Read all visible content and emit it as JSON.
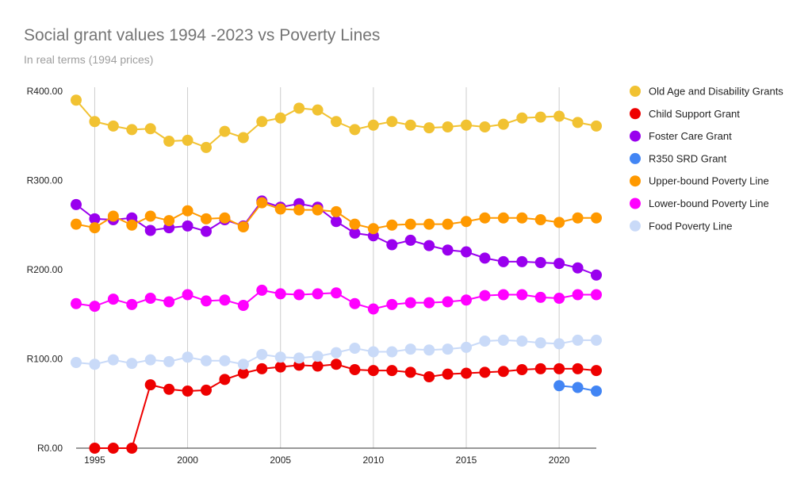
{
  "chart_data": {
    "type": "line",
    "title": "Social grant values 1994 -2023 vs Poverty Lines",
    "subtitle": "In real terms (1994 prices)",
    "xlabel": "",
    "ylabel": "",
    "x": [
      1994,
      1995,
      1996,
      1997,
      1998,
      1999,
      2000,
      2001,
      2002,
      2003,
      2004,
      2005,
      2006,
      2007,
      2008,
      2009,
      2010,
      2011,
      2012,
      2013,
      2014,
      2015,
      2016,
      2017,
      2018,
      2019,
      2020,
      2021,
      2022
    ],
    "xlim": [
      1994,
      2022
    ],
    "x_ticks": [
      1995,
      2000,
      2005,
      2010,
      2015,
      2020
    ],
    "ylim": [
      0,
      400
    ],
    "y_ticks": [
      {
        "value": 0,
        "label": "R0.00"
      },
      {
        "value": 100,
        "label": "R100.00"
      },
      {
        "value": 200,
        "label": "R200.00"
      },
      {
        "value": 300,
        "label": "R300.00"
      },
      {
        "value": 400,
        "label": "R400.00"
      }
    ],
    "grid": {
      "vertical": true,
      "horizontal": false
    },
    "legend_position": "right",
    "series": [
      {
        "name": "Old Age and Disability Grants",
        "color": "#f1c232",
        "values": [
          390,
          366,
          361,
          357,
          358,
          344,
          345,
          337,
          355,
          348,
          366,
          370,
          381,
          379,
          366,
          357,
          362,
          366,
          362,
          359,
          360,
          362,
          360,
          363,
          370,
          371,
          372,
          365,
          361
        ]
      },
      {
        "name": "Child Support Grant",
        "color": "#ee0000",
        "values": [
          null,
          0,
          0,
          0,
          71,
          66,
          64,
          65,
          77,
          84,
          89,
          91,
          93,
          92,
          94,
          88,
          87,
          87,
          85,
          80,
          83,
          84,
          85,
          86,
          88,
          89,
          89,
          89,
          87
        ]
      },
      {
        "name": "Foster Care Grant",
        "color": "#9900ee",
        "values": [
          273,
          257,
          256,
          258,
          244,
          247,
          249,
          243,
          256,
          249,
          277,
          270,
          274,
          270,
          254,
          241,
          238,
          228,
          233,
          227,
          222,
          220,
          213,
          209,
          209,
          208,
          207,
          202,
          194
        ]
      },
      {
        "name": "R350 SRD Grant",
        "color": "#4285f4",
        "values": [
          null,
          null,
          null,
          null,
          null,
          null,
          null,
          null,
          null,
          null,
          null,
          null,
          null,
          null,
          null,
          null,
          null,
          null,
          null,
          null,
          null,
          null,
          null,
          null,
          null,
          null,
          70,
          68,
          64
        ]
      },
      {
        "name": "Upper-bound Poverty Line",
        "color": "#ff9900",
        "values": [
          251,
          247,
          260,
          250,
          260,
          255,
          266,
          257,
          258,
          248,
          275,
          268,
          267,
          267,
          265,
          251,
          246,
          250,
          251,
          251,
          251,
          254,
          258,
          258,
          258,
          256,
          253,
          258,
          258
        ]
      },
      {
        "name": "Lower-bound Poverty Line",
        "color": "#ff00ff",
        "values": [
          162,
          159,
          167,
          161,
          168,
          164,
          172,
          165,
          166,
          160,
          177,
          173,
          172,
          173,
          174,
          162,
          156,
          161,
          163,
          163,
          164,
          166,
          171,
          172,
          172,
          169,
          168,
          172,
          172
        ]
      },
      {
        "name": "Food Poverty Line",
        "color": "#c9daf8",
        "values": [
          96,
          94,
          99,
          95,
          99,
          97,
          102,
          98,
          98,
          94,
          105,
          102,
          101,
          103,
          107,
          112,
          108,
          108,
          111,
          110,
          111,
          113,
          120,
          121,
          120,
          118,
          117,
          121,
          121
        ]
      }
    ]
  }
}
